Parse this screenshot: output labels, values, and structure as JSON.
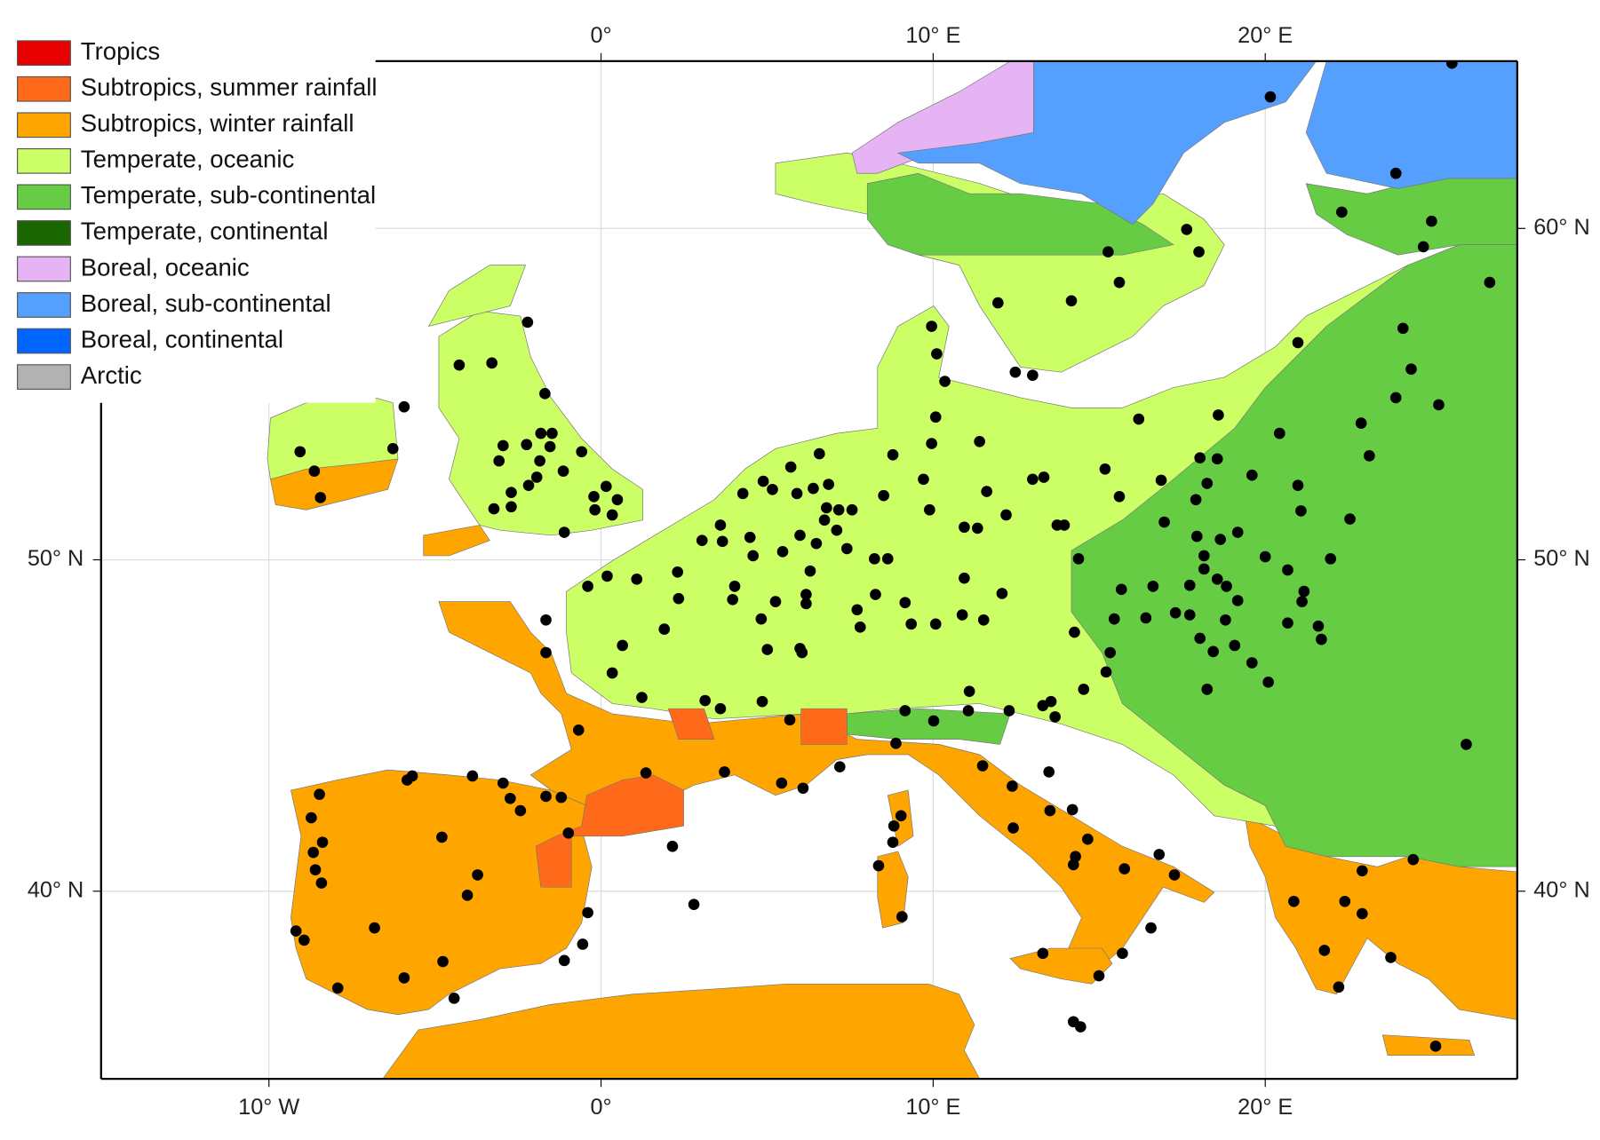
{
  "legend": {
    "items": [
      {
        "label": "Tropics",
        "color": "#e60000"
      },
      {
        "label": "Subtropics, summer rainfall",
        "color": "#ff6a1a"
      },
      {
        "label": "Subtropics, winter rainfall",
        "color": "#ffa500"
      },
      {
        "label": "Temperate, oceanic",
        "color": "#ccff66"
      },
      {
        "label": "Temperate, sub-continental",
        "color": "#66cc44"
      },
      {
        "label": "Temperate, continental",
        "color": "#1a6600"
      },
      {
        "label": "Boreal, oceanic",
        "color": "#e6b3f5"
      },
      {
        "label": "Boreal, sub-continental",
        "color": "#55a0ff"
      },
      {
        "label": "Boreal, continental",
        "color": "#0066ff"
      },
      {
        "label": "Arctic",
        "color": "#b2b2b2"
      }
    ]
  },
  "axes": {
    "top": [
      {
        "value": 0,
        "label": "0°"
      },
      {
        "value": 10,
        "label": "10° E"
      },
      {
        "value": 20,
        "label": "20° E"
      }
    ],
    "bottom": [
      {
        "value": -10,
        "label": "10° W"
      },
      {
        "value": 0,
        "label": "0°"
      },
      {
        "value": 10,
        "label": "10° E"
      },
      {
        "value": 20,
        "label": "20° E"
      }
    ],
    "left": [
      {
        "value": 50,
        "label": "50° N"
      },
      {
        "value": 40,
        "label": "40° N"
      }
    ],
    "right": [
      {
        "value": 60,
        "label": "60° N"
      },
      {
        "value": 50,
        "label": "50° N"
      },
      {
        "value": 40,
        "label": "40° N"
      }
    ]
  }
}
